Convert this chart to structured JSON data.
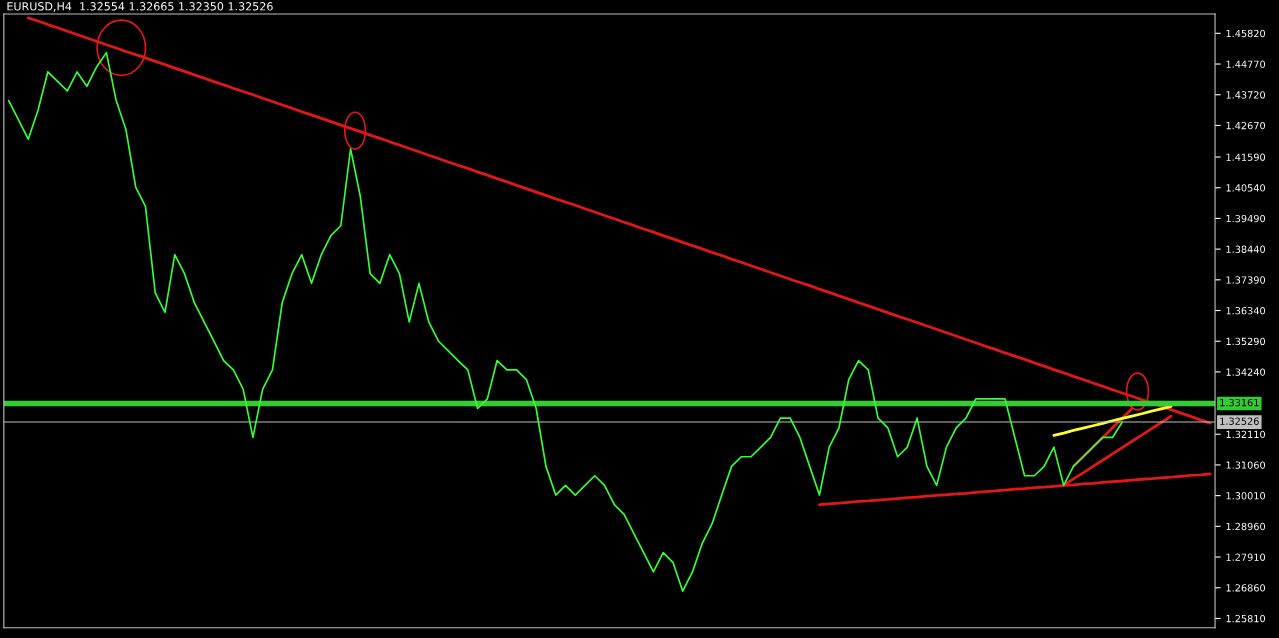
{
  "chart_data": {
    "type": "line",
    "title": "EURUSD,H4  1.32554 1.32665 1.32350 1.32526",
    "categories": [
      null,
      null,
      null,
      null,
      null,
      null,
      null,
      null,
      null,
      null,
      null,
      null,
      null,
      null,
      null,
      null,
      null,
      null,
      null,
      null,
      null,
      null,
      null,
      null,
      null,
      null,
      null,
      null,
      null,
      null,
      null,
      null,
      null,
      null,
      null,
      null,
      null,
      null,
      null,
      null,
      null,
      null,
      null,
      null,
      null,
      null,
      null,
      null,
      null,
      null,
      null,
      null,
      null,
      null,
      null,
      null,
      null,
      null,
      null,
      null,
      null,
      null,
      null,
      null,
      null,
      null,
      null,
      null,
      null,
      null,
      null,
      null,
      null,
      null,
      null,
      null,
      null,
      null,
      null,
      null,
      null,
      null,
      null,
      null,
      null,
      null,
      null,
      null,
      null,
      null,
      null,
      null,
      null,
      null,
      null,
      null,
      null,
      null,
      null,
      null,
      null,
      null,
      null,
      null,
      null,
      null,
      null,
      null,
      null,
      null,
      null,
      null,
      null,
      null,
      null,
      null,
      null,
      null,
      null,
      null,
      null,
      null,
      null,
      null
    ],
    "series": [
      {
        "color": "#33ff33",
        "values": [
          1.4352,
          1.4286,
          1.422,
          1.4319,
          1.445,
          1.4418,
          1.4385,
          1.445,
          1.4401,
          1.4467,
          1.4516,
          1.4352,
          1.4253,
          1.4056,
          1.399,
          1.3694,
          1.3628,
          1.3825,
          1.376,
          1.3661,
          1.3595,
          1.3529,
          1.3463,
          1.3431,
          1.3365,
          1.32,
          1.3365,
          1.3431,
          1.3661,
          1.376,
          1.3825,
          1.3727,
          1.3825,
          1.3891,
          1.3924,
          1.4187,
          1.4023,
          1.376,
          1.3727,
          1.3825,
          1.376,
          1.3595,
          1.3727,
          1.3595,
          1.3529,
          1.3496,
          1.3463,
          1.3431,
          1.3299,
          1.3332,
          1.3463,
          1.3431,
          1.3431,
          1.3398,
          1.3299,
          1.3101,
          1.3003,
          1.3036,
          1.3003,
          1.3036,
          1.3069,
          1.3036,
          1.297,
          1.2937,
          1.2871,
          1.2806,
          1.274,
          1.2806,
          1.2773,
          1.2674,
          1.274,
          1.2838,
          1.2904,
          1.3003,
          1.3101,
          1.3134,
          1.3134,
          1.3167,
          1.32,
          1.3266,
          1.3266,
          1.32,
          1.3101,
          1.3003,
          1.3167,
          1.3233,
          1.3398,
          1.3463,
          1.3431,
          1.3266,
          1.3233,
          1.3134,
          1.3167,
          1.3266,
          1.3101,
          1.3036,
          1.3167,
          1.3233,
          1.3266,
          1.3332,
          1.3332,
          1.3332,
          1.3332,
          1.32,
          1.3069,
          1.3069,
          1.3101,
          1.3167,
          1.3036,
          1.3101,
          1.3134,
          1.3167,
          1.32,
          1.32,
          1.3253,
          null,
          null,
          null,
          null,
          null,
          null,
          null,
          null,
          null
        ]
      },
      {
        "color": "#e01818",
        "values": [
          null,
          null,
          1.4635,
          1.4624,
          1.4612,
          1.4601,
          1.4589,
          1.4578,
          1.4566,
          1.4555,
          1.4543,
          1.4532,
          1.452,
          1.4509,
          1.4498,
          1.4486,
          1.4475,
          1.4463,
          1.4452,
          1.444,
          1.4429,
          1.4417,
          1.4406,
          1.4394,
          1.4383,
          1.4372,
          1.436,
          1.4349,
          1.4337,
          1.4326,
          1.4314,
          1.4303,
          1.4291,
          1.428,
          1.4268,
          1.4257,
          1.4246,
          1.4234,
          1.4223,
          1.4211,
          1.42,
          1.4188,
          1.4177,
          1.4165,
          1.4154,
          1.4142,
          1.4131,
          1.412,
          1.4108,
          1.4097,
          1.4085,
          1.4074,
          1.4062,
          1.4051,
          1.4039,
          1.4028,
          1.4016,
          1.4005,
          1.3994,
          1.3982,
          1.3971,
          1.3959,
          1.3948,
          1.3936,
          1.3925,
          1.3913,
          1.3902,
          1.389,
          1.3879,
          1.3867,
          1.3856,
          1.3845,
          1.3833,
          1.3822,
          1.381,
          1.3799,
          1.3787,
          1.3776,
          1.3764,
          1.3753,
          1.3741,
          1.373,
          1.3719,
          1.3707,
          1.3696,
          1.3684,
          1.3673,
          1.3661,
          1.365,
          1.3638,
          1.3627,
          1.3615,
          1.3604,
          1.3593,
          1.3581,
          1.357,
          1.3558,
          1.3547,
          1.3535,
          1.3524,
          1.3512,
          1.3501,
          1.3489,
          1.3478,
          1.3467,
          1.3455,
          1.3444,
          1.3432,
          1.3421,
          1.3409,
          1.3398,
          1.3386,
          1.3375,
          1.3363,
          1.3352,
          1.3341,
          1.3329,
          1.3318,
          1.3306,
          1.3295,
          1.3283,
          1.3272,
          1.326,
          1.3249
        ]
      },
      {
        "color": "#e01818",
        "values": [
          null,
          null,
          null,
          null,
          null,
          null,
          null,
          null,
          null,
          null,
          null,
          null,
          null,
          null,
          null,
          null,
          null,
          null,
          null,
          null,
          null,
          null,
          null,
          null,
          null,
          null,
          null,
          null,
          null,
          null,
          null,
          null,
          null,
          null,
          null,
          null,
          null,
          null,
          null,
          null,
          null,
          null,
          null,
          null,
          null,
          null,
          null,
          null,
          null,
          null,
          null,
          null,
          null,
          null,
          null,
          null,
          null,
          null,
          null,
          null,
          null,
          null,
          null,
          null,
          null,
          null,
          null,
          null,
          null,
          null,
          null,
          null,
          null,
          null,
          null,
          null,
          null,
          null,
          null,
          null,
          null,
          null,
          null,
          1.297,
          1.2973,
          1.2975,
          1.2978,
          1.2981,
          1.2983,
          1.2986,
          1.2988,
          1.2991,
          1.2994,
          1.2996,
          1.2999,
          1.3002,
          1.3004,
          1.3007,
          1.3009,
          1.3012,
          1.3015,
          1.3017,
          1.302,
          1.3023,
          1.3025,
          1.3028,
          1.303,
          1.3033,
          1.3036,
          1.3038,
          1.3041,
          1.3043,
          1.3046,
          1.3049,
          1.3051,
          1.3054,
          1.3057,
          1.3059,
          1.3062,
          1.3064,
          1.3067,
          1.307,
          1.3072,
          1.3075
        ]
      },
      {
        "color": "#e01818",
        "values": [
          null,
          null,
          null,
          null,
          null,
          null,
          null,
          null,
          null,
          null,
          null,
          null,
          null,
          null,
          null,
          null,
          null,
          null,
          null,
          null,
          null,
          null,
          null,
          null,
          null,
          null,
          null,
          null,
          null,
          null,
          null,
          null,
          null,
          null,
          null,
          null,
          null,
          null,
          null,
          null,
          null,
          null,
          null,
          null,
          null,
          null,
          null,
          null,
          null,
          null,
          null,
          null,
          null,
          null,
          null,
          null,
          null,
          null,
          null,
          null,
          null,
          null,
          null,
          null,
          null,
          null,
          null,
          null,
          null,
          null,
          null,
          null,
          null,
          null,
          null,
          null,
          null,
          null,
          null,
          null,
          null,
          null,
          null,
          null,
          null,
          null,
          null,
          null,
          null,
          null,
          null,
          null,
          null,
          null,
          null,
          null,
          null,
          null,
          null,
          null,
          null,
          null,
          null,
          null,
          null,
          null,
          null,
          null,
          1.3036,
          1.3058,
          1.3079,
          1.3101,
          1.3122,
          1.3144,
          1.3165,
          1.3187,
          1.3208,
          1.323,
          1.3251,
          1.3273,
          null,
          null,
          null,
          null
        ]
      },
      {
        "color": "#e01818",
        "values": [
          null,
          null,
          null,
          null,
          null,
          null,
          null,
          null,
          null,
          null,
          null,
          null,
          null,
          null,
          null,
          null,
          null,
          null,
          null,
          null,
          null,
          null,
          null,
          null,
          null,
          null,
          null,
          null,
          null,
          null,
          null,
          null,
          null,
          null,
          null,
          null,
          null,
          null,
          null,
          null,
          null,
          null,
          null,
          null,
          null,
          null,
          null,
          null,
          null,
          null,
          null,
          null,
          null,
          null,
          null,
          null,
          null,
          null,
          null,
          null,
          null,
          null,
          null,
          null,
          null,
          null,
          null,
          null,
          null,
          null,
          null,
          null,
          null,
          null,
          null,
          null,
          null,
          null,
          null,
          null,
          null,
          null,
          null,
          null,
          null,
          null,
          null,
          null,
          null,
          null,
          null,
          null,
          null,
          null,
          null,
          null,
          null,
          null,
          null,
          null,
          null,
          null,
          null,
          null,
          null,
          null,
          null,
          null,
          null,
          1.3101,
          1.3134,
          1.3167,
          1.32,
          1.3233,
          1.3266,
          1.3299,
          null,
          null,
          null,
          null,
          null,
          null,
          null,
          null
        ]
      },
      {
        "color": "#ffff33",
        "values": [
          null,
          null,
          null,
          null,
          null,
          null,
          null,
          null,
          null,
          null,
          null,
          null,
          null,
          null,
          null,
          null,
          null,
          null,
          null,
          null,
          null,
          null,
          null,
          null,
          null,
          null,
          null,
          null,
          null,
          null,
          null,
          null,
          null,
          null,
          null,
          null,
          null,
          null,
          null,
          null,
          null,
          null,
          null,
          null,
          null,
          null,
          null,
          null,
          null,
          null,
          null,
          null,
          null,
          null,
          null,
          null,
          null,
          null,
          null,
          null,
          null,
          null,
          null,
          null,
          null,
          null,
          null,
          null,
          null,
          null,
          null,
          null,
          null,
          null,
          null,
          null,
          null,
          null,
          null,
          null,
          null,
          null,
          null,
          null,
          null,
          null,
          null,
          null,
          null,
          null,
          null,
          null,
          null,
          null,
          null,
          null,
          null,
          null,
          null,
          null,
          null,
          null,
          null,
          null,
          null,
          null,
          null,
          1.3207,
          1.3215,
          1.3224,
          1.3232,
          1.324,
          1.3248,
          1.3257,
          1.3265,
          1.3273,
          1.3281,
          1.329,
          1.3298,
          1.3306,
          null,
          null,
          null,
          null
        ]
      }
    ],
    "ref_lines": [
      {
        "axis": "y",
        "value": 1.33161,
        "label": "1.33161",
        "color": "#33cc33"
      },
      {
        "axis": "y",
        "value": 1.32526,
        "label": "1.32526",
        "color": "#c0c0c0"
      }
    ],
    "ylim": [
      1.2549,
      1.4648
    ],
    "yticks": [
      {
        "value": 1.2581,
        "label": "1.25810"
      },
      {
        "value": 1.2686,
        "label": "1.26860"
      },
      {
        "value": 1.2791,
        "label": "1.27910"
      },
      {
        "value": 1.2896,
        "label": "1.28960"
      },
      {
        "value": 1.3001,
        "label": "1.30010"
      },
      {
        "value": 1.3106,
        "label": "1.31060"
      },
      {
        "value": 1.3211,
        "label": "1.32110"
      },
      {
        "value": 1.3424,
        "label": "1.34240"
      },
      {
        "value": 1.3529,
        "label": "1.35290"
      },
      {
        "value": 1.3634,
        "label": "1.36340"
      },
      {
        "value": 1.3739,
        "label": "1.37390"
      },
      {
        "value": 1.3844,
        "label": "1.38440"
      },
      {
        "value": 1.3949,
        "label": "1.39490"
      },
      {
        "value": 1.4054,
        "label": "1.40540"
      },
      {
        "value": 1.4159,
        "label": "1.41590"
      },
      {
        "value": 1.4267,
        "label": "1.42670"
      },
      {
        "value": 1.4372,
        "label": "1.43720"
      },
      {
        "value": 1.4477,
        "label": "1.44770"
      },
      {
        "value": 1.4582,
        "label": "1.45820"
      }
    ],
    "tick_labels": "y",
    "grid": false,
    "legend": false,
    "marker": "none",
    "line_style": "solid"
  }
}
